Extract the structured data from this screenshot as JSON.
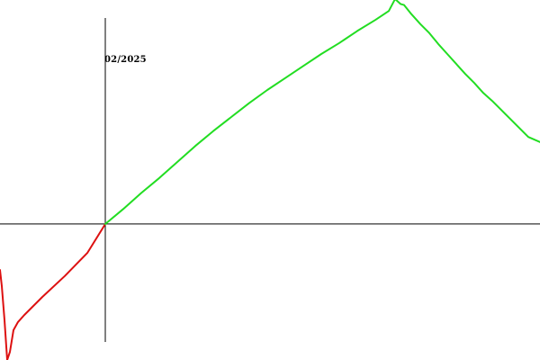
{
  "chart_data": {
    "type": "line",
    "label": "02/2025",
    "colors": {
      "axis": "#000000",
      "positive": "#22dd22",
      "negative": "#dd1111"
    },
    "xlim": [
      -117,
      483
    ],
    "ylim": [
      -136,
      224
    ],
    "series": [
      {
        "color": "#dd1111",
        "points": [
          [
            -117,
            -46
          ],
          [
            -115,
            -62
          ],
          [
            -112,
            -96
          ],
          [
            -109,
            -136
          ],
          [
            -106,
            -128
          ],
          [
            -102,
            -106
          ],
          [
            -97,
            -98
          ],
          [
            -90,
            -91
          ],
          [
            -70,
            -73
          ],
          [
            -45,
            -52
          ],
          [
            -20,
            -29
          ],
          [
            0,
            0
          ]
        ]
      },
      {
        "color": "#22dd22",
        "points": [
          [
            0,
            0
          ],
          [
            20,
            15
          ],
          [
            40,
            31
          ],
          [
            60,
            46
          ],
          [
            80,
            62
          ],
          [
            100,
            78
          ],
          [
            120,
            93
          ],
          [
            140,
            107
          ],
          [
            160,
            121
          ],
          [
            180,
            134
          ],
          [
            200,
            146
          ],
          [
            220,
            158
          ],
          [
            240,
            170
          ],
          [
            260,
            181
          ],
          [
            280,
            193
          ],
          [
            300,
            204
          ],
          [
            315,
            213
          ],
          [
            322,
            225
          ],
          [
            328,
            220
          ],
          [
            332,
            219
          ],
          [
            340,
            210
          ],
          [
            350,
            200
          ],
          [
            360,
            191
          ],
          [
            370,
            180
          ],
          [
            380,
            170
          ],
          [
            390,
            160
          ],
          [
            400,
            150
          ],
          [
            410,
            141
          ],
          [
            420,
            131
          ],
          [
            430,
            123
          ],
          [
            440,
            114
          ],
          [
            450,
            105
          ],
          [
            460,
            96
          ],
          [
            470,
            87
          ],
          [
            483,
            82
          ]
        ]
      }
    ]
  }
}
